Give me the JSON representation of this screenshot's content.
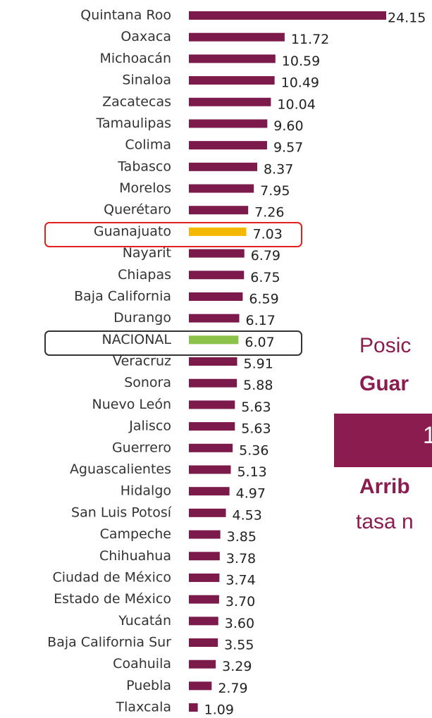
{
  "chart_data": {
    "type": "bar",
    "orientation": "horizontal",
    "categories": [
      "Quintana Roo",
      "Oaxaca",
      "Michoacán",
      "Sinaloa",
      "Zacatecas",
      "Tamaulipas",
      "Colima",
      "Tabasco",
      "Morelos",
      "Querétaro",
      "Guanajuato",
      "Nayarit",
      "Chiapas",
      "Baja California",
      "Durango",
      "NACIONAL",
      "Veracruz",
      "Sonora",
      "Nuevo León",
      "Jalisco",
      "Guerrero",
      "Aguascalientes",
      "Hidalgo",
      "San Luis Potosí",
      "Campeche",
      "Chihuahua",
      "Ciudad de México",
      "Estado de México",
      "Yucatán",
      "Baja California Sur",
      "Coahuila",
      "Puebla",
      "Tlaxcala"
    ],
    "values": [
      24.15,
      11.72,
      10.59,
      10.49,
      10.04,
      9.6,
      9.57,
      8.37,
      7.95,
      7.26,
      7.03,
      6.79,
      6.75,
      6.59,
      6.17,
      6.07,
      5.91,
      5.88,
      5.63,
      5.63,
      5.36,
      5.13,
      4.97,
      4.53,
      3.85,
      3.78,
      3.74,
      3.7,
      3.6,
      3.55,
      3.29,
      2.79,
      1.09
    ],
    "value_labels": [
      "24.15",
      "11.72",
      "10.59",
      "10.49",
      "10.04",
      "9.60",
      "9.57",
      "8.37",
      "7.95",
      "7.26",
      "7.03",
      "6.79",
      "6.75",
      "6.59",
      "6.17",
      "6.07",
      "5.91",
      "5.88",
      "5.63",
      "5.63",
      "5.36",
      "5.13",
      "4.97",
      "4.53",
      "3.85",
      "3.78",
      "3.74",
      "3.70",
      "3.60",
      "3.55",
      "3.29",
      "2.79",
      "1.09"
    ],
    "colors": [
      "#7b1a4b",
      "#7b1a4b",
      "#7b1a4b",
      "#7b1a4b",
      "#7b1a4b",
      "#7b1a4b",
      "#7b1a4b",
      "#7b1a4b",
      "#7b1a4b",
      "#7b1a4b",
      "#f5b800",
      "#7b1a4b",
      "#7b1a4b",
      "#7b1a4b",
      "#7b1a4b",
      "#8bc34a",
      "#7b1a4b",
      "#7b1a4b",
      "#7b1a4b",
      "#7b1a4b",
      "#7b1a4b",
      "#7b1a4b",
      "#7b1a4b",
      "#7b1a4b",
      "#7b1a4b",
      "#7b1a4b",
      "#7b1a4b",
      "#7b1a4b",
      "#7b1a4b",
      "#7b1a4b",
      "#7b1a4b",
      "#7b1a4b",
      "#7b1a4b"
    ],
    "annotations": [
      "Posic",
      "Guar",
      "1",
      "Arrib",
      "tasa n"
    ]
  }
}
